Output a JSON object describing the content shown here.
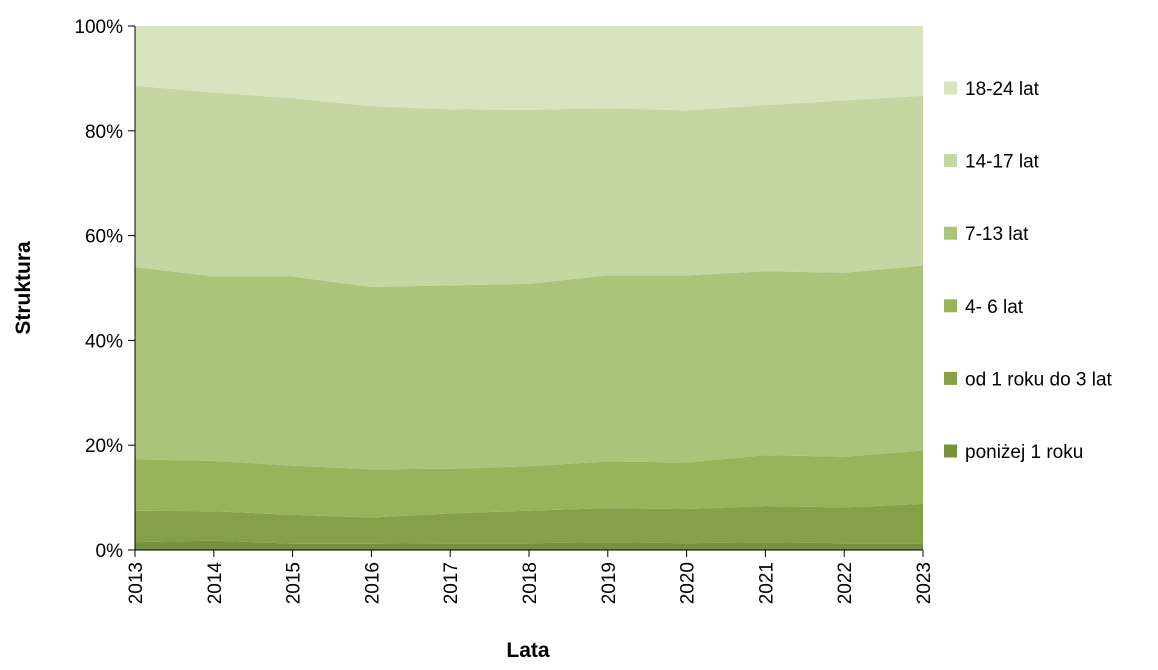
{
  "chart_data": {
    "type": "area",
    "stacked": "percent",
    "xlabel": "Lata",
    "ylabel": "Struktura",
    "ylim": [
      0,
      100
    ],
    "y_ticks": [
      "0%",
      "20%",
      "40%",
      "60%",
      "80%",
      "100%"
    ],
    "categories": [
      "2013",
      "2014",
      "2015",
      "2016",
      "2017",
      "2018",
      "2019",
      "2020",
      "2021",
      "2022",
      "2023"
    ],
    "legend_position": "right",
    "grid": false,
    "series": [
      {
        "name": "poniżej 1 roku",
        "color": "#76923c",
        "values": [
          1.5,
          1.8,
          1.2,
          1.2,
          1.3,
          1.3,
          1.5,
          1.3,
          1.5,
          1.3,
          1.3
        ]
      },
      {
        "name": "od 1 roku do 3 lat",
        "color": "#86a04a",
        "values": [
          6.0,
          5.6,
          5.5,
          5.0,
          5.7,
          6.2,
          6.5,
          6.5,
          6.9,
          6.8,
          7.5
        ]
      },
      {
        "name": "4- 6 lat",
        "color": "#98b45b",
        "values": [
          9.8,
          9.6,
          9.4,
          9.2,
          8.5,
          8.5,
          8.9,
          8.9,
          9.7,
          9.7,
          10.2
        ]
      },
      {
        "name": "7-13 lat",
        "color": "#aac57a",
        "values": [
          36.7,
          35.2,
          36.1,
          34.8,
          35.0,
          34.8,
          35.5,
          35.7,
          35.1,
          35.1,
          35.3
        ]
      },
      {
        "name": "14-17 lat",
        "color": "#c4d6a1",
        "values": [
          34.6,
          35.1,
          34.0,
          34.5,
          33.6,
          33.2,
          31.9,
          31.5,
          31.7,
          32.9,
          32.4
        ]
      },
      {
        "name": "18-24 lat",
        "color": "#d8e4bf",
        "values": [
          11.4,
          12.7,
          13.8,
          15.3,
          15.9,
          16.0,
          15.7,
          16.1,
          15.1,
          14.2,
          13.3
        ]
      }
    ]
  }
}
